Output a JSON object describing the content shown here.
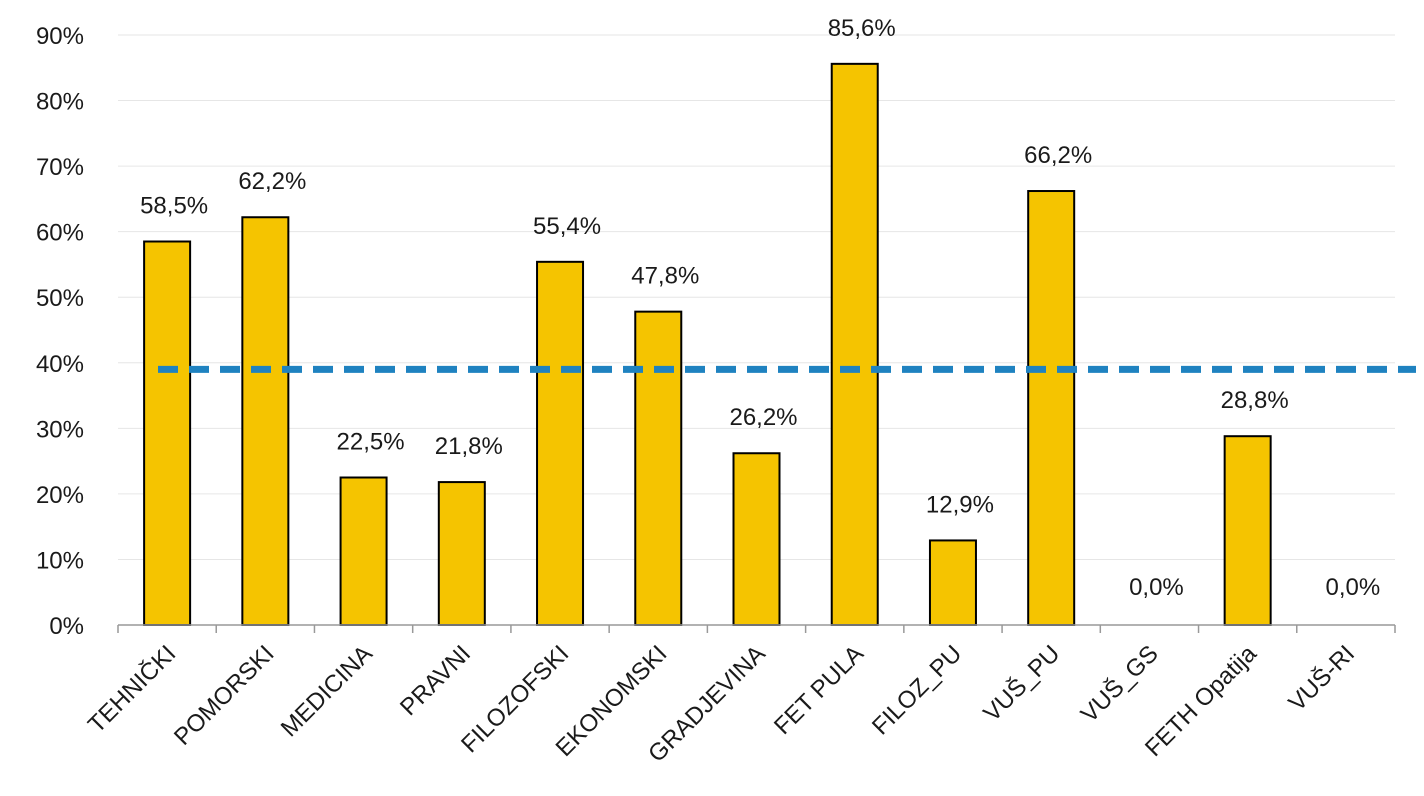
{
  "chart_data": {
    "type": "bar",
    "title": "",
    "xlabel": "",
    "ylabel": "",
    "ylim": [
      0,
      90
    ],
    "y_ticks": [
      "0%",
      "10%",
      "20%",
      "30%",
      "40%",
      "50%",
      "60%",
      "70%",
      "80%",
      "90%"
    ],
    "y_tick_values": [
      0,
      10,
      20,
      30,
      40,
      50,
      60,
      70,
      80,
      90
    ],
    "grid": true,
    "categories": [
      "TEHNIČKI",
      "POMORSKI",
      "MEDICINA",
      "PRAVNI",
      "FILOZOFSKI",
      "EKONOMSKI",
      "GRADJEVINA",
      "FET PULA",
      "FILOZ_PU",
      "VUŠ_PU",
      "VUŠ_GS",
      "FETH Opatija",
      "VUŠ-RI"
    ],
    "values": [
      58.5,
      62.2,
      22.5,
      21.8,
      55.4,
      47.8,
      26.2,
      85.6,
      12.9,
      66.2,
      0.0,
      28.8,
      0.0
    ],
    "data_labels": [
      "58,5%",
      "62,2%",
      "22,5%",
      "21,8%",
      "55,4%",
      "47,8%",
      "26,2%",
      "85,6%",
      "12,9%",
      "66,2%",
      "0,0%",
      "28,8%",
      "0,0%"
    ],
    "reference_line": {
      "value": 39,
      "style": "dashed",
      "color": "#1f82c0"
    },
    "colors": {
      "bar": "#f5c400",
      "bar_outline": "#000000",
      "gridline": "#e6e6e6"
    }
  }
}
